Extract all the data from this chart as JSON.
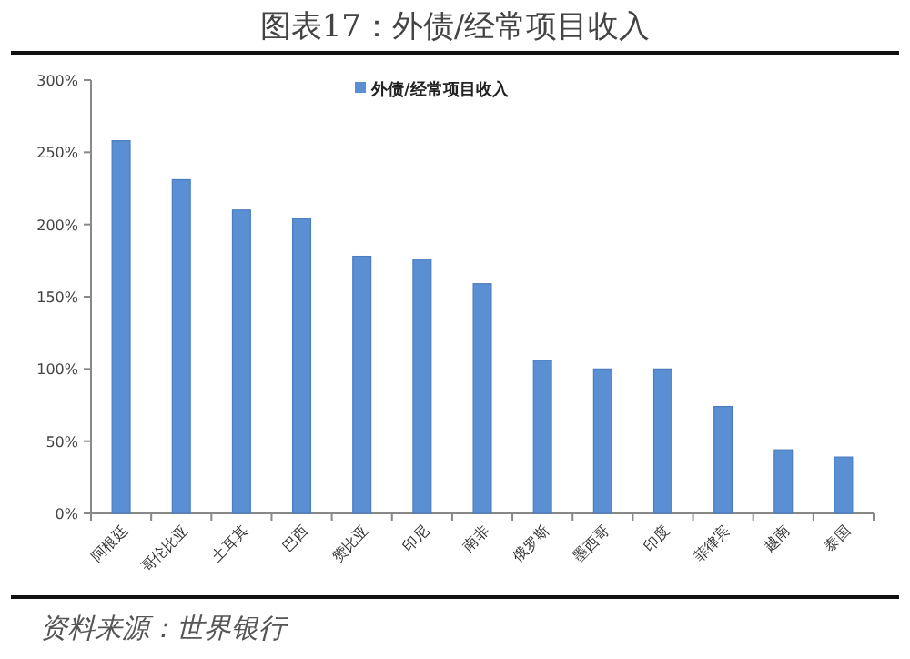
{
  "chart_data": {
    "type": "bar",
    "title": "图表17：外债/经常项目收入",
    "categories": [
      "阿根廷",
      "哥伦比亚",
      "土耳其",
      "巴西",
      "赞比亚",
      "印尼",
      "南非",
      "俄罗斯",
      "墨西哥",
      "印度",
      "菲律宾",
      "越南",
      "泰国"
    ],
    "series": [
      {
        "name": "外债/经常项目收入",
        "color": "#5b8fd3",
        "values": [
          258,
          231,
          210,
          204,
          178,
          176,
          159,
          106,
          100,
          100,
          74,
          44,
          39
        ]
      }
    ],
    "ylim": [
      0,
      300
    ],
    "yticks": [
      {
        "value": 0,
        "label": "0%"
      },
      {
        "value": 50,
        "label": "50%"
      },
      {
        "value": 100,
        "label": "100%"
      },
      {
        "value": 150,
        "label": "150%"
      },
      {
        "value": 200,
        "label": "200%"
      },
      {
        "value": 250,
        "label": "250%"
      },
      {
        "value": 300,
        "label": "300%"
      }
    ],
    "legend": "top",
    "annotations": [
      "资料来源：世界银行"
    ]
  }
}
